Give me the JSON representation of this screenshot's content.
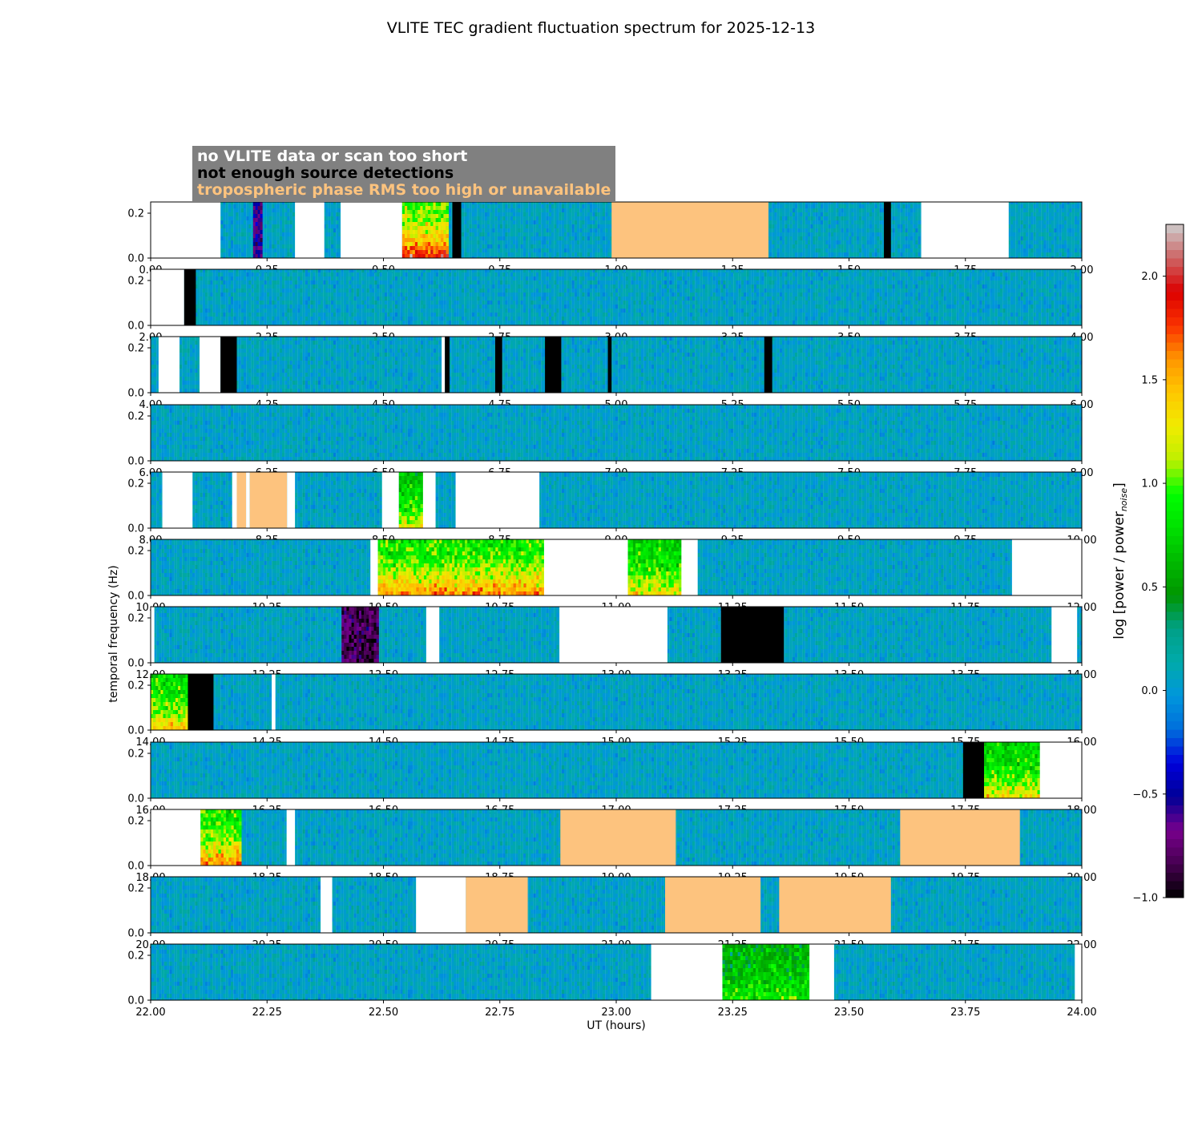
{
  "title": "VLITE TEC gradient fluctuation spectrum for 2025-12-13",
  "legend": {
    "no_data": "no VLITE data or scan too short",
    "no_sources": "not enough source detections",
    "tropo": "tropospheric phase RMS too high or unavailable"
  },
  "colors": {
    "no_data": "#ffffff",
    "no_sources": "#000000",
    "tropo": "#fdc37e",
    "legend_bg": "#808080"
  },
  "axes": {
    "xlabel": "UT (hours)",
    "ylabel": "temporal frequency (Hz)",
    "cbar_label_main": "log [power / power",
    "cbar_label_sub": "noise",
    "cbar_label_end": "]"
  },
  "chart_data": {
    "type": "heatmap",
    "colormap": "nipy_spectral",
    "clim": [
      -1.0,
      2.25
    ],
    "colorbar_ticks": [
      "-1.0",
      "-0.5",
      "0.0",
      "0.5",
      "1.0",
      "1.5",
      "2.0"
    ],
    "ylim": [
      0,
      0.25
    ],
    "y_ticks": [
      "0.0",
      "0.2"
    ],
    "grid": false,
    "legend_placement": "top-left",
    "panels": [
      {
        "xlim": [
          0,
          2
        ],
        "x_ticks": [
          "0.00",
          "0.25",
          "0.50",
          "0.75",
          "1.00",
          "1.25",
          "1.50",
          "1.75",
          "2.00"
        ],
        "masks": [
          {
            "type": "no_data",
            "start": 0.0,
            "end": 0.15
          },
          {
            "type": "no_data",
            "start": 0.31,
            "end": 0.373
          },
          {
            "type": "no_data",
            "start": 0.408,
            "end": 0.54
          },
          {
            "type": "no_sources",
            "start": 0.648,
            "end": 0.667
          },
          {
            "type": "tropo",
            "start": 0.99,
            "end": 1.327
          },
          {
            "type": "no_sources",
            "start": 1.575,
            "end": 1.59
          },
          {
            "type": "no_data",
            "start": 1.655,
            "end": 1.843
          }
        ],
        "events": [
          {
            "start": 0.54,
            "end": 0.64,
            "level": 1.9
          },
          {
            "start": 0.22,
            "end": 0.24,
            "level": -0.6
          }
        ]
      },
      {
        "xlim": [
          2,
          4
        ],
        "x_ticks": [
          "2.00",
          "2.25",
          "2.50",
          "2.75",
          "3.00",
          "3.25",
          "3.50",
          "3.75",
          "4.00"
        ],
        "masks": [
          {
            "type": "no_data",
            "start": 2.0,
            "end": 2.072
          },
          {
            "type": "no_sources",
            "start": 2.072,
            "end": 2.097
          }
        ],
        "events": []
      },
      {
        "xlim": [
          4,
          6
        ],
        "x_ticks": [
          "4.00",
          "4.25",
          "4.50",
          "4.75",
          "5.00",
          "5.25",
          "5.50",
          "5.75",
          "6.00"
        ],
        "masks": [
          {
            "type": "no_data",
            "start": 4.017,
            "end": 4.062
          },
          {
            "type": "no_data",
            "start": 4.105,
            "end": 4.15
          },
          {
            "type": "no_sources",
            "start": 4.15,
            "end": 4.185
          },
          {
            "type": "no_data",
            "start": 4.625,
            "end": 4.632
          },
          {
            "type": "no_sources",
            "start": 4.632,
            "end": 4.642
          },
          {
            "type": "no_sources",
            "start": 4.74,
            "end": 4.755
          },
          {
            "type": "no_sources",
            "start": 4.847,
            "end": 4.882
          },
          {
            "type": "no_sources",
            "start": 4.982,
            "end": 4.99
          },
          {
            "type": "no_sources",
            "start": 5.318,
            "end": 5.335
          }
        ],
        "events": []
      },
      {
        "xlim": [
          6,
          8
        ],
        "x_ticks": [
          "6.00",
          "6.25",
          "6.50",
          "6.75",
          "7.00",
          "7.25",
          "7.50",
          "7.75",
          "8.00"
        ],
        "masks": [],
        "events": []
      },
      {
        "xlim": [
          8,
          10
        ],
        "x_ticks": [
          "8.00",
          "8.25",
          "8.50",
          "8.75",
          "9.00",
          "9.25",
          "9.50",
          "9.75",
          "10.00"
        ],
        "masks": [
          {
            "type": "no_data",
            "start": 8.025,
            "end": 8.09
          },
          {
            "type": "no_data",
            "start": 8.175,
            "end": 8.185
          },
          {
            "type": "tropo",
            "start": 8.185,
            "end": 8.205
          },
          {
            "type": "no_data",
            "start": 8.205,
            "end": 8.213
          },
          {
            "type": "tropo",
            "start": 8.213,
            "end": 8.293
          },
          {
            "type": "no_data",
            "start": 8.293,
            "end": 8.31
          },
          {
            "type": "no_data",
            "start": 8.497,
            "end": 8.533
          },
          {
            "type": "no_data",
            "start": 8.585,
            "end": 8.612
          },
          {
            "type": "no_data",
            "start": 8.655,
            "end": 8.835
          }
        ],
        "events": [
          {
            "start": 8.533,
            "end": 8.585,
            "level": 1.2
          }
        ]
      },
      {
        "xlim": [
          10,
          12
        ],
        "x_ticks": [
          "10.00",
          "10.25",
          "10.50",
          "10.75",
          "11.00",
          "11.25",
          "11.50",
          "11.75",
          "12.00"
        ],
        "masks": [
          {
            "type": "no_data",
            "start": 10.472,
            "end": 10.488
          },
          {
            "type": "no_data",
            "start": 10.845,
            "end": 11.025
          },
          {
            "type": "no_data",
            "start": 11.14,
            "end": 11.175
          },
          {
            "type": "no_data",
            "start": 11.85,
            "end": 12.0
          }
        ],
        "events": [
          {
            "start": 10.488,
            "end": 10.845,
            "level": 1.6
          },
          {
            "start": 11.025,
            "end": 11.14,
            "level": 1.3
          }
        ]
      },
      {
        "xlim": [
          12,
          14
        ],
        "x_ticks": [
          "12.00",
          "12.25",
          "12.50",
          "12.75",
          "13.00",
          "13.25",
          "13.50",
          "13.75",
          "14.00"
        ],
        "masks": [
          {
            "type": "no_data",
            "start": 12.0,
            "end": 12.008
          },
          {
            "type": "no_data",
            "start": 12.592,
            "end": 12.62
          },
          {
            "type": "no_data",
            "start": 12.878,
            "end": 13.11
          },
          {
            "type": "no_sources",
            "start": 13.225,
            "end": 13.36
          },
          {
            "type": "no_data",
            "start": 13.935,
            "end": 13.99
          }
        ],
        "events": [
          {
            "start": 12.41,
            "end": 12.49,
            "level": -0.8
          }
        ]
      },
      {
        "xlim": [
          14,
          16
        ],
        "x_ticks": [
          "14.00",
          "14.25",
          "14.50",
          "14.75",
          "15.00",
          "15.25",
          "15.50",
          "15.75",
          "16.00"
        ],
        "masks": [
          {
            "type": "no_sources",
            "start": 14.08,
            "end": 14.135
          },
          {
            "type": "no_data",
            "start": 14.26,
            "end": 14.268
          }
        ],
        "events": [
          {
            "start": 14.0,
            "end": 14.08,
            "level": 1.4
          }
        ]
      },
      {
        "xlim": [
          16,
          18
        ],
        "x_ticks": [
          "16.00",
          "16.25",
          "16.50",
          "16.75",
          "17.00",
          "17.25",
          "17.50",
          "17.75",
          "18.00"
        ],
        "masks": [
          {
            "type": "no_sources",
            "start": 17.745,
            "end": 17.79
          },
          {
            "type": "no_data",
            "start": 17.91,
            "end": 18.0
          }
        ],
        "events": [
          {
            "start": 17.79,
            "end": 17.91,
            "level": 1.3
          }
        ]
      },
      {
        "xlim": [
          18,
          20
        ],
        "x_ticks": [
          "18.00",
          "18.25",
          "18.50",
          "18.75",
          "19.00",
          "19.25",
          "19.50",
          "19.75",
          "20.00"
        ],
        "masks": [
          {
            "type": "no_data",
            "start": 18.0,
            "end": 18.107
          },
          {
            "type": "no_data",
            "start": 18.292,
            "end": 18.31
          },
          {
            "type": "tropo",
            "start": 18.88,
            "end": 19.128
          },
          {
            "type": "tropo",
            "start": 19.61,
            "end": 19.867
          }
        ],
        "events": [
          {
            "start": 18.107,
            "end": 18.195,
            "level": 1.6
          }
        ]
      },
      {
        "xlim": [
          20,
          22
        ],
        "x_ticks": [
          "20.00",
          "20.25",
          "20.50",
          "20.75",
          "21.00",
          "21.25",
          "21.50",
          "21.75",
          "22.00"
        ],
        "masks": [
          {
            "type": "no_data",
            "start": 20.365,
            "end": 20.39
          },
          {
            "type": "no_data",
            "start": 20.57,
            "end": 20.677
          },
          {
            "type": "tropo",
            "start": 20.677,
            "end": 20.81
          },
          {
            "type": "tropo",
            "start": 21.105,
            "end": 21.31
          },
          {
            "type": "tropo",
            "start": 21.35,
            "end": 21.59
          }
        ],
        "events": []
      },
      {
        "xlim": [
          22,
          24
        ],
        "x_ticks": [
          "22.00",
          "22.25",
          "22.50",
          "22.75",
          "23.00",
          "23.25",
          "23.50",
          "23.75",
          "24.00"
        ],
        "masks": [
          {
            "type": "no_data",
            "start": 23.075,
            "end": 23.228
          },
          {
            "type": "no_data",
            "start": 23.415,
            "end": 23.468
          },
          {
            "type": "no_data",
            "start": 23.985,
            "end": 24.0
          }
        ],
        "events": [
          {
            "start": 23.228,
            "end": 23.415,
            "level": 0.9
          }
        ]
      }
    ]
  }
}
